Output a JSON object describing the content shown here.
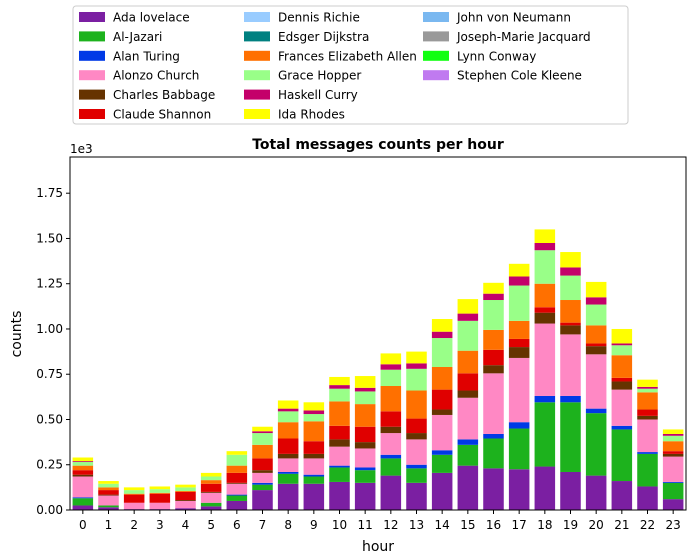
{
  "chart_data": {
    "type": "bar",
    "stacked": true,
    "title": "Total messages counts per hour",
    "xlabel": "hour",
    "ylabel": "counts",
    "y_offset_label": "1e3",
    "ylim": [
      0,
      1950
    ],
    "yticks": [
      0,
      250,
      500,
      750,
      1000,
      1250,
      1500,
      1750
    ],
    "ytick_labels": [
      "0.00",
      "0.25",
      "0.50",
      "0.75",
      "1.00",
      "1.25",
      "1.50",
      "1.75"
    ],
    "legend_position": "top",
    "categories": [
      "0",
      "1",
      "2",
      "3",
      "4",
      "5",
      "6",
      "7",
      "8",
      "9",
      "10",
      "11",
      "12",
      "13",
      "14",
      "15",
      "16",
      "17",
      "18",
      "19",
      "20",
      "21",
      "22",
      "23"
    ],
    "series": [
      {
        "name": "Ada lovelace",
        "color": "#7b1fa2",
        "values": [
          25,
          15,
          5,
          5,
          10,
          20,
          50,
          110,
          145,
          145,
          155,
          150,
          190,
          150,
          205,
          245,
          230,
          225,
          240,
          210,
          190,
          160,
          130,
          60
        ]
      },
      {
        "name": "Al-Jazari",
        "color": "#1db21d",
        "values": [
          40,
          10,
          0,
          0,
          0,
          20,
          30,
          30,
          55,
          40,
          80,
          70,
          95,
          80,
          100,
          115,
          165,
          225,
          355,
          385,
          345,
          285,
          180,
          90
        ]
      },
      {
        "name": "Alan Turing",
        "color": "#0039e6",
        "values": [
          5,
          0,
          0,
          0,
          0,
          0,
          5,
          10,
          10,
          10,
          10,
          15,
          20,
          20,
          25,
          30,
          25,
          35,
          35,
          35,
          25,
          20,
          10,
          5
        ]
      },
      {
        "name": "Alonzo Church",
        "color": "#ff88c4",
        "values": [
          115,
          55,
          35,
          35,
          40,
          55,
          60,
          55,
          75,
          90,
          105,
          105,
          120,
          140,
          195,
          230,
          335,
          355,
          400,
          340,
          300,
          200,
          180,
          140
        ]
      },
      {
        "name": "Charles Babbage",
        "color": "#663300",
        "values": [
          10,
          5,
          0,
          0,
          5,
          5,
          5,
          15,
          25,
          25,
          40,
          35,
          35,
          35,
          30,
          40,
          45,
          60,
          60,
          50,
          45,
          45,
          20,
          15
        ]
      },
      {
        "name": "Claude Shannon",
        "color": "#e00000",
        "values": [
          25,
          25,
          45,
          50,
          45,
          45,
          55,
          65,
          85,
          70,
          75,
          85,
          85,
          80,
          110,
          95,
          85,
          45,
          30,
          15,
          15,
          20,
          35,
          15
        ]
      },
      {
        "name": "Dennis Richie",
        "color": "#99ccff",
        "values": [
          0,
          0,
          0,
          0,
          0,
          0,
          0,
          0,
          0,
          0,
          0,
          0,
          0,
          0,
          0,
          0,
          0,
          0,
          0,
          0,
          0,
          0,
          0,
          0
        ]
      },
      {
        "name": "Edsger Dijkstra",
        "color": "#008080",
        "values": [
          0,
          0,
          0,
          0,
          0,
          0,
          0,
          0,
          0,
          0,
          0,
          0,
          0,
          0,
          0,
          0,
          0,
          0,
          0,
          0,
          0,
          0,
          0,
          0
        ]
      },
      {
        "name": "Frances Elizabeth Allen",
        "color": "#ff7000",
        "values": [
          25,
          15,
          5,
          5,
          5,
          20,
          40,
          75,
          90,
          110,
          135,
          125,
          140,
          155,
          125,
          125,
          110,
          100,
          130,
          125,
          100,
          125,
          95,
          55
        ]
      },
      {
        "name": "Grace Hopper",
        "color": "#99ff88",
        "values": [
          20,
          20,
          20,
          20,
          20,
          20,
          60,
          65,
          60,
          40,
          70,
          70,
          90,
          120,
          160,
          165,
          165,
          195,
          185,
          135,
          115,
          55,
          20,
          30
        ]
      },
      {
        "name": "Haskell Curry",
        "color": "#c4006a",
        "values": [
          5,
          0,
          0,
          0,
          0,
          0,
          0,
          10,
          15,
          20,
          20,
          20,
          30,
          30,
          35,
          40,
          35,
          50,
          40,
          45,
          40,
          10,
          10,
          10
        ]
      },
      {
        "name": "Ida Rhodes",
        "color": "#ffff00",
        "values": [
          20,
          15,
          15,
          15,
          15,
          20,
          20,
          25,
          45,
          45,
          45,
          65,
          60,
          65,
          70,
          80,
          60,
          70,
          75,
          85,
          85,
          80,
          40,
          25
        ]
      },
      {
        "name": "John von Neumann",
        "color": "#7ab8f0",
        "values": [
          0,
          0,
          0,
          0,
          0,
          0,
          0,
          0,
          0,
          0,
          0,
          0,
          0,
          0,
          0,
          0,
          0,
          0,
          0,
          0,
          0,
          0,
          0,
          0
        ]
      },
      {
        "name": "Joseph-Marie Jacquard",
        "color": "#999999",
        "values": [
          0,
          0,
          0,
          0,
          0,
          0,
          0,
          0,
          0,
          0,
          0,
          0,
          0,
          0,
          0,
          0,
          0,
          0,
          0,
          0,
          0,
          0,
          0,
          0
        ]
      },
      {
        "name": "Lynn Conway",
        "color": "#11ff11",
        "values": [
          0,
          0,
          0,
          0,
          0,
          0,
          0,
          0,
          0,
          0,
          0,
          0,
          0,
          0,
          0,
          0,
          0,
          0,
          0,
          0,
          0,
          0,
          0,
          0
        ]
      },
      {
        "name": "Stephen Cole Kleene",
        "color": "#c07af0",
        "values": [
          0,
          0,
          0,
          0,
          0,
          0,
          0,
          0,
          0,
          0,
          0,
          0,
          0,
          0,
          0,
          0,
          0,
          0,
          0,
          0,
          0,
          0,
          0,
          0
        ]
      }
    ]
  }
}
